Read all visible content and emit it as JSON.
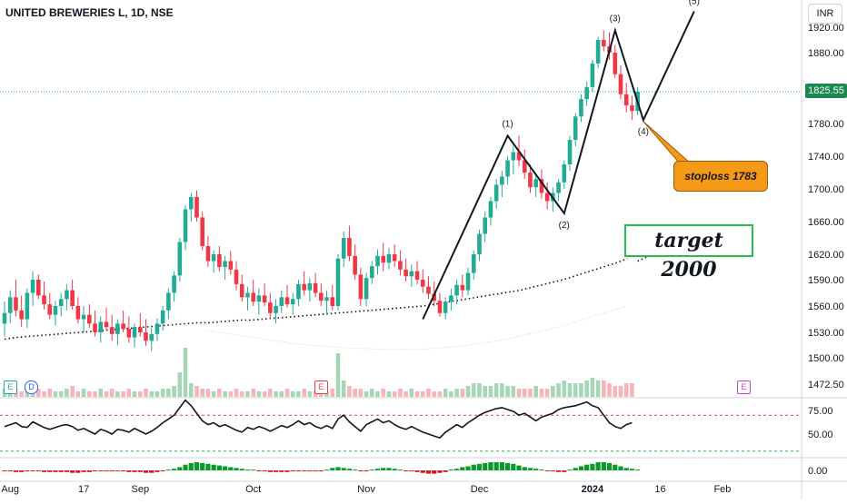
{
  "title": "UNITED BREWERIES L, 1D, NSE",
  "currency": "INR",
  "last_price": "1825.55",
  "colors": {
    "up": "#22ab94",
    "down": "#f23645",
    "ma": "#131722",
    "rsi": "#131722",
    "target_border": "#22c04a",
    "stop_bg": "#f59a17",
    "price_tag": "#1b8a50"
  },
  "chart_data": {
    "type": "candlestick",
    "price_axis": {
      "ticks": [
        "1920.00",
        "1880.00",
        "1825.55",
        "1780.00",
        "1740.00",
        "1700.00",
        "1660.00",
        "1620.00",
        "1590.00",
        "1560.00",
        "1530.00",
        "1500.00",
        "1472.50"
      ],
      "current": 1825.55
    },
    "x_axis_labels": [
      "Aug",
      "17",
      "Sep",
      "Oct",
      "Nov",
      "Dec",
      "2024",
      "16",
      "Feb"
    ],
    "ohlc": [
      [
        1540,
        1565,
        1525,
        1552
      ],
      [
        1552,
        1578,
        1540,
        1570
      ],
      [
        1570,
        1590,
        1548,
        1555
      ],
      [
        1555,
        1572,
        1536,
        1545
      ],
      [
        1545,
        1580,
        1535,
        1575
      ],
      [
        1575,
        1600,
        1560,
        1590
      ],
      [
        1590,
        1596,
        1568,
        1572
      ],
      [
        1572,
        1588,
        1556,
        1562
      ],
      [
        1562,
        1575,
        1545,
        1550
      ],
      [
        1550,
        1566,
        1538,
        1560
      ],
      [
        1560,
        1575,
        1548,
        1568
      ],
      [
        1568,
        1585,
        1555,
        1578
      ],
      [
        1578,
        1590,
        1556,
        1560
      ],
      [
        1560,
        1570,
        1540,
        1545
      ],
      [
        1545,
        1560,
        1530,
        1550
      ],
      [
        1550,
        1562,
        1535,
        1540
      ],
      [
        1540,
        1555,
        1525,
        1530
      ],
      [
        1530,
        1548,
        1518,
        1542
      ],
      [
        1542,
        1558,
        1532,
        1536
      ],
      [
        1536,
        1550,
        1520,
        1528
      ],
      [
        1528,
        1545,
        1515,
        1540
      ],
      [
        1540,
        1555,
        1530,
        1534
      ],
      [
        1534,
        1548,
        1518,
        1524
      ],
      [
        1524,
        1540,
        1512,
        1536
      ],
      [
        1536,
        1552,
        1525,
        1530
      ],
      [
        1530,
        1545,
        1514,
        1520
      ],
      [
        1520,
        1535,
        1508,
        1528
      ],
      [
        1528,
        1546,
        1520,
        1540
      ],
      [
        1540,
        1560,
        1532,
        1555
      ],
      [
        1555,
        1580,
        1545,
        1575
      ],
      [
        1575,
        1600,
        1565,
        1595
      ],
      [
        1595,
        1640,
        1588,
        1635
      ],
      [
        1635,
        1680,
        1625,
        1675
      ],
      [
        1675,
        1695,
        1660,
        1690
      ],
      [
        1690,
        1698,
        1660,
        1665
      ],
      [
        1665,
        1672,
        1625,
        1630
      ],
      [
        1630,
        1642,
        1605,
        1612
      ],
      [
        1612,
        1625,
        1598,
        1620
      ],
      [
        1620,
        1630,
        1600,
        1605
      ],
      [
        1605,
        1618,
        1590,
        1612
      ],
      [
        1612,
        1624,
        1596,
        1602
      ],
      [
        1602,
        1612,
        1578,
        1585
      ],
      [
        1585,
        1596,
        1565,
        1570
      ],
      [
        1570,
        1582,
        1555,
        1575
      ],
      [
        1575,
        1590,
        1560,
        1565
      ],
      [
        1565,
        1580,
        1550,
        1572
      ],
      [
        1572,
        1586,
        1560,
        1564
      ],
      [
        1564,
        1575,
        1545,
        1552
      ],
      [
        1552,
        1568,
        1540,
        1560
      ],
      [
        1560,
        1578,
        1552,
        1570
      ],
      [
        1570,
        1584,
        1558,
        1562
      ],
      [
        1562,
        1575,
        1550,
        1568
      ],
      [
        1568,
        1590,
        1560,
        1585
      ],
      [
        1585,
        1600,
        1572,
        1578
      ],
      [
        1578,
        1592,
        1565,
        1586
      ],
      [
        1586,
        1598,
        1570,
        1575
      ],
      [
        1575,
        1586,
        1560,
        1566
      ],
      [
        1566,
        1578,
        1550,
        1570
      ],
      [
        1570,
        1584,
        1555,
        1560
      ],
      [
        1560,
        1620,
        1555,
        1615
      ],
      [
        1615,
        1648,
        1605,
        1640
      ],
      [
        1640,
        1655,
        1612,
        1618
      ],
      [
        1618,
        1632,
        1590,
        1596
      ],
      [
        1596,
        1604,
        1560,
        1568
      ],
      [
        1568,
        1598,
        1560,
        1592
      ],
      [
        1592,
        1612,
        1585,
        1606
      ],
      [
        1606,
        1626,
        1596,
        1618
      ],
      [
        1618,
        1634,
        1600,
        1610
      ],
      [
        1610,
        1628,
        1602,
        1620
      ],
      [
        1620,
        1632,
        1605,
        1612
      ],
      [
        1612,
        1625,
        1595,
        1602
      ],
      [
        1602,
        1615,
        1588,
        1594
      ],
      [
        1594,
        1608,
        1582,
        1600
      ],
      [
        1600,
        1612,
        1585,
        1590
      ],
      [
        1590,
        1602,
        1575,
        1582
      ],
      [
        1582,
        1594,
        1568,
        1574
      ],
      [
        1574,
        1588,
        1560,
        1566
      ],
      [
        1566,
        1575,
        1548,
        1552
      ],
      [
        1552,
        1570,
        1545,
        1565
      ],
      [
        1565,
        1580,
        1555,
        1572
      ],
      [
        1572,
        1590,
        1562,
        1584
      ],
      [
        1584,
        1596,
        1570,
        1578
      ],
      [
        1578,
        1604,
        1572,
        1598
      ],
      [
        1598,
        1625,
        1590,
        1620
      ],
      [
        1620,
        1650,
        1612,
        1645
      ],
      [
        1645,
        1672,
        1635,
        1665
      ],
      [
        1665,
        1690,
        1655,
        1685
      ],
      [
        1685,
        1712,
        1676,
        1705
      ],
      [
        1705,
        1722,
        1690,
        1715
      ],
      [
        1715,
        1740,
        1705,
        1735
      ],
      [
        1735,
        1752,
        1718,
        1745
      ],
      [
        1745,
        1765,
        1728,
        1735
      ],
      [
        1735,
        1748,
        1712,
        1720
      ],
      [
        1720,
        1730,
        1695,
        1702
      ],
      [
        1702,
        1718,
        1690,
        1712
      ],
      [
        1712,
        1724,
        1688,
        1695
      ],
      [
        1695,
        1708,
        1675,
        1685
      ],
      [
        1685,
        1702,
        1672,
        1695
      ],
      [
        1695,
        1712,
        1685,
        1708
      ],
      [
        1708,
        1735,
        1700,
        1730
      ],
      [
        1730,
        1765,
        1722,
        1760
      ],
      [
        1760,
        1795,
        1752,
        1790
      ],
      [
        1790,
        1822,
        1782,
        1815
      ],
      [
        1815,
        1840,
        1805,
        1832
      ],
      [
        1832,
        1870,
        1825,
        1865
      ],
      [
        1865,
        1905,
        1858,
        1900
      ],
      [
        1900,
        1915,
        1882,
        1890
      ],
      [
        1890,
        1912,
        1870,
        1880
      ],
      [
        1880,
        1892,
        1845,
        1850
      ],
      [
        1850,
        1862,
        1815,
        1822
      ],
      [
        1822,
        1838,
        1796,
        1806
      ],
      [
        1806,
        1820,
        1785,
        1798
      ],
      [
        1798,
        1832,
        1792,
        1825.55
      ]
    ],
    "ma_dotted": [
      1522,
      1524,
      1525,
      1526,
      1527,
      1528,
      1529,
      1530,
      1531,
      1532,
      1533,
      1534,
      1535,
      1536,
      1537,
      1538,
      1539,
      1540,
      1541,
      1541,
      1542,
      1543,
      1544,
      1544,
      1545,
      1546,
      1547,
      1548,
      1549,
      1550,
      1551,
      1552,
      1553,
      1554,
      1555,
      1556,
      1557,
      1558,
      1559,
      1560,
      1562,
      1564,
      1566,
      1568,
      1570,
      1572,
      1574,
      1576,
      1578,
      1581,
      1584,
      1587,
      1590,
      1594,
      1598,
      1602,
      1606,
      1610,
      1615
    ],
    "ma_faint": [
      1532,
      1530,
      1528,
      1526,
      1524,
      1522,
      1520,
      1518,
      1516,
      1515,
      1514,
      1513,
      1512,
      1511,
      1511,
      1510,
      1510,
      1510,
      1510,
      1510,
      1511,
      1512,
      1513,
      1515,
      1517,
      1519,
      1521,
      1524,
      1527,
      1530,
      1533,
      1536,
      1540,
      1544,
      1548,
      1552,
      1556,
      1560
    ],
    "volume": [
      3,
      4,
      3,
      2,
      3,
      5,
      3,
      2,
      3,
      2,
      2,
      3,
      4,
      2,
      3,
      2,
      2,
      3,
      2,
      3,
      2,
      2,
      3,
      2,
      2,
      3,
      2,
      2,
      3,
      3,
      4,
      9,
      18,
      5,
      4,
      3,
      3,
      2,
      3,
      2,
      2,
      3,
      2,
      2,
      3,
      2,
      2,
      3,
      2,
      2,
      3,
      2,
      2,
      3,
      2,
      2,
      3,
      2,
      3,
      16,
      6,
      4,
      3,
      3,
      2,
      3,
      2,
      3,
      2,
      2,
      3,
      2,
      3,
      2,
      2,
      3,
      2,
      2,
      3,
      2,
      3,
      3,
      4,
      5,
      5,
      4,
      4,
      5,
      5,
      4,
      4,
      3,
      3,
      3,
      4,
      3,
      3,
      4,
      5,
      6,
      5,
      5,
      5,
      6,
      7,
      6,
      6,
      5,
      4,
      4,
      5,
      5
    ],
    "rsi": {
      "ticks": [
        "75.00",
        "50.00"
      ],
      "levels": [
        70,
        30
      ],
      "values": [
        58,
        60,
        62,
        58,
        57,
        63,
        60,
        57,
        55,
        57,
        59,
        60,
        58,
        54,
        56,
        53,
        50,
        55,
        53,
        50,
        55,
        54,
        52,
        56,
        53,
        50,
        53,
        57,
        62,
        66,
        70,
        78,
        86,
        80,
        72,
        64,
        60,
        62,
        58,
        60,
        57,
        54,
        52,
        57,
        55,
        58,
        56,
        53,
        56,
        59,
        57,
        60,
        64,
        60,
        62,
        58,
        56,
        59,
        56,
        66,
        70,
        63,
        58,
        53,
        60,
        63,
        66,
        62,
        64,
        60,
        57,
        55,
        58,
        55,
        52,
        50,
        48,
        46,
        52,
        56,
        60,
        57,
        62,
        66,
        70,
        73,
        75,
        77,
        78,
        76,
        74,
        70,
        72,
        68,
        64,
        68,
        70,
        72,
        76,
        78,
        79,
        80,
        82,
        84,
        80,
        78,
        70,
        62,
        58,
        56,
        60,
        62
      ],
      "tick_values": [
        75,
        50,
        0
      ]
    },
    "histogram": {
      "ticks": [
        "0.00"
      ],
      "values": [
        -1,
        -1,
        -2,
        -2,
        -1,
        -1,
        -1,
        -2,
        -2,
        -2,
        -2,
        -2,
        -3,
        -3,
        -2,
        -2,
        -1,
        -1,
        -1,
        -1,
        -1,
        -1,
        -2,
        -2,
        -2,
        -3,
        -3,
        -2,
        -1,
        1,
        2,
        4,
        7,
        9,
        10,
        9,
        8,
        7,
        6,
        5,
        4,
        3,
        2,
        1,
        1,
        -1,
        -1,
        -2,
        -2,
        -2,
        -2,
        -1,
        -1,
        -1,
        -1,
        -1,
        -1,
        1,
        3,
        4,
        3,
        2,
        1,
        -1,
        -1,
        1,
        2,
        3,
        3,
        2,
        1,
        -1,
        -1,
        -2,
        -3,
        -4,
        -4,
        -3,
        -2,
        1,
        2,
        4,
        5,
        7,
        8,
        9,
        10,
        10,
        10,
        9,
        8,
        6,
        4,
        3,
        2,
        1,
        -1,
        -1,
        -2,
        -2,
        1,
        3,
        5,
        7,
        8,
        10,
        10,
        9,
        7,
        5,
        3,
        2,
        1
      ]
    },
    "wave_path": [
      [
        0,
        1540
      ],
      [
        0,
        1540
      ]
    ],
    "wave_labels": [
      "(1)",
      "(2)",
      "(3)",
      "(4)",
      "(5)"
    ],
    "annotations": {
      "target": "target 2000",
      "stoploss": "stoploss 1783"
    },
    "event_badges": [
      "E",
      "D",
      "E",
      "E"
    ],
    "grid": false
  }
}
